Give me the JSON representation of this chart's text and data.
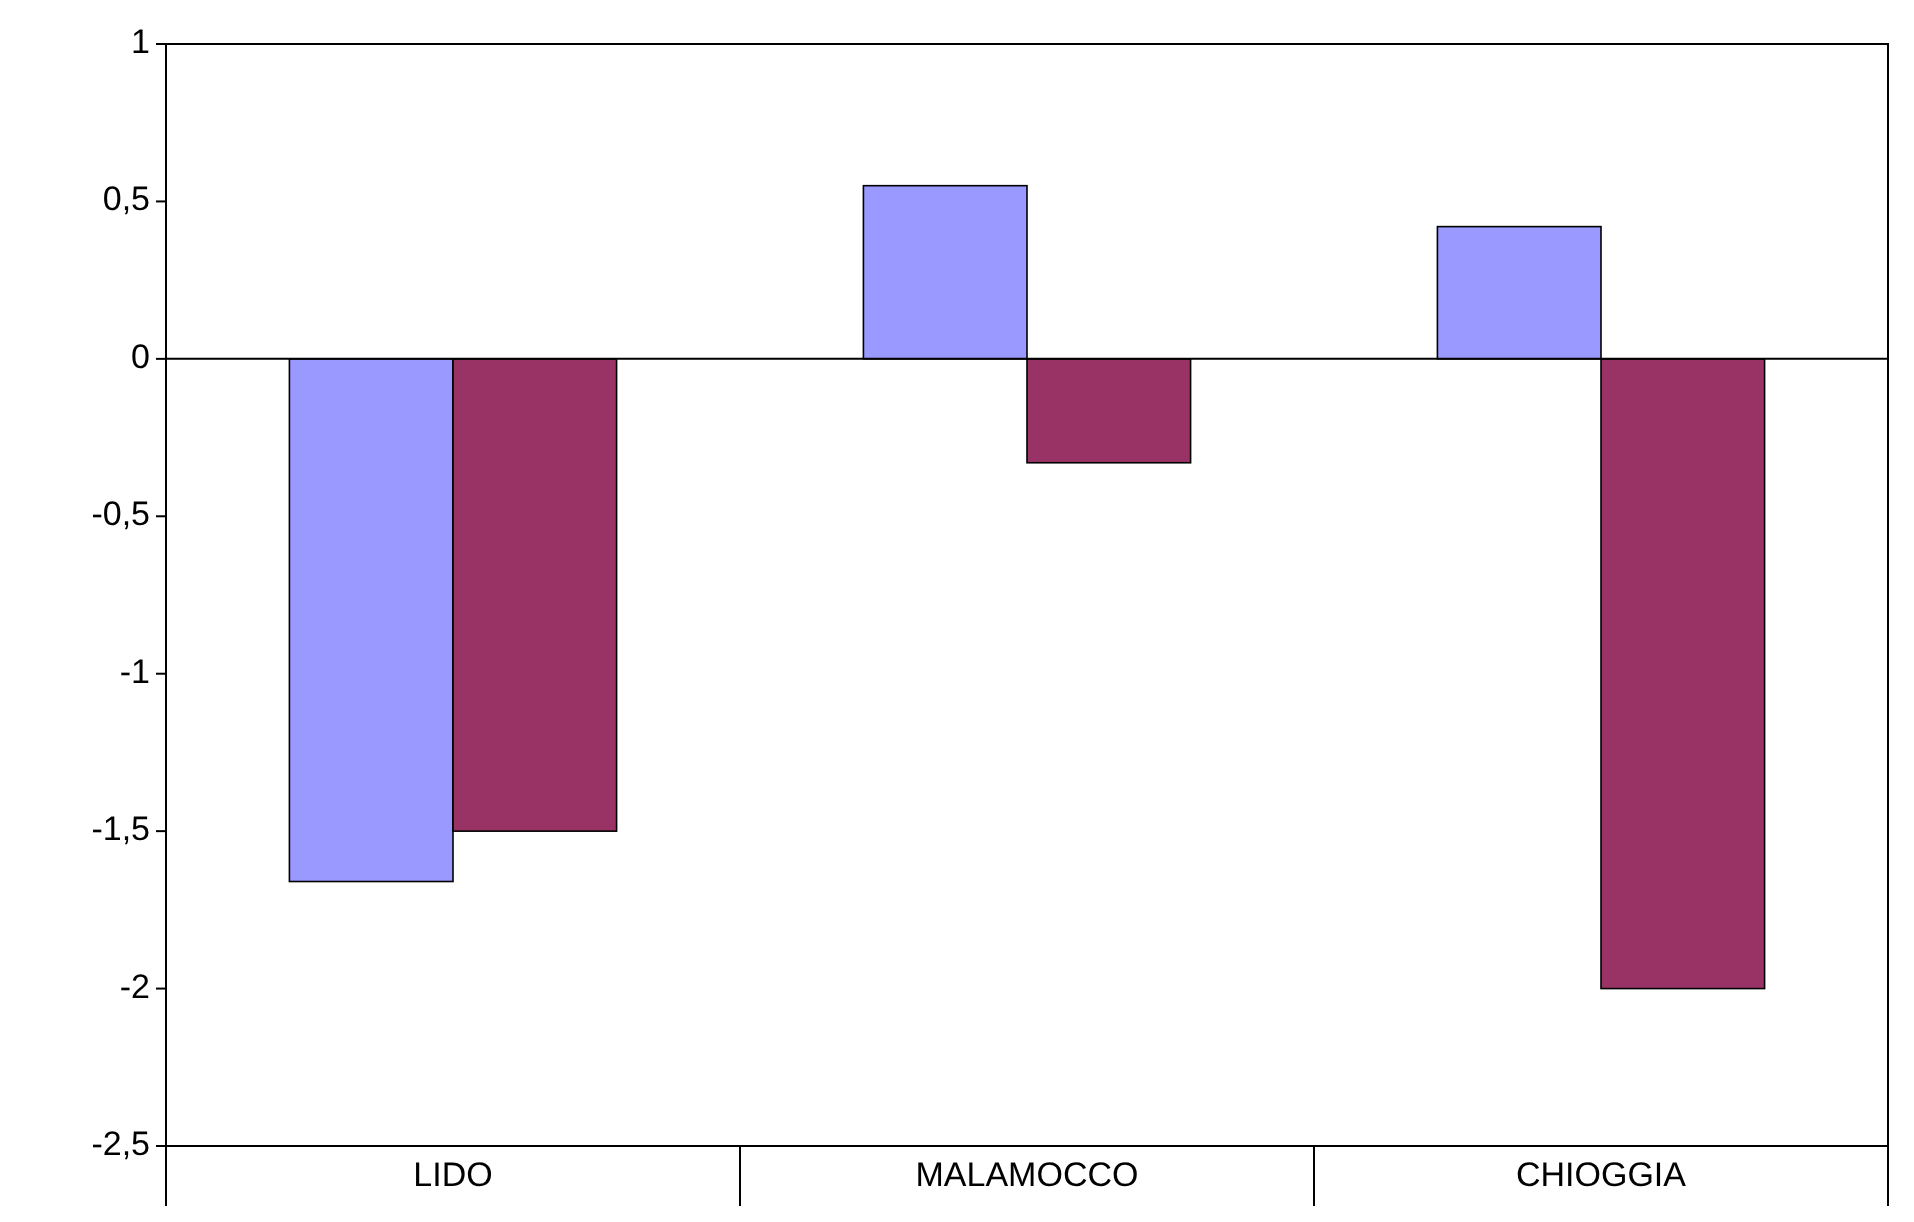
{
  "chart_data": {
    "type": "bar",
    "categories": [
      "LIDO",
      "MALAMOCCO",
      "CHIOGGIA"
    ],
    "series": [
      {
        "color": "#9999ff",
        "values": [
          -1.66,
          0.55,
          0.42
        ]
      },
      {
        "color": "#993366",
        "values": [
          -1.5,
          -0.33,
          -2.0
        ]
      }
    ],
    "ylim": [
      -2.5,
      1
    ],
    "yticks": [
      {
        "value": -2.5,
        "label": "-2,5"
      },
      -2,
      {
        "value": -1.5,
        "label": "-1,5"
      },
      -1,
      {
        "value": -0.5,
        "label": "-0,5"
      },
      0,
      {
        "value": 0.5,
        "label": "0,5"
      },
      1
    ],
    "ylabel": null
  }
}
